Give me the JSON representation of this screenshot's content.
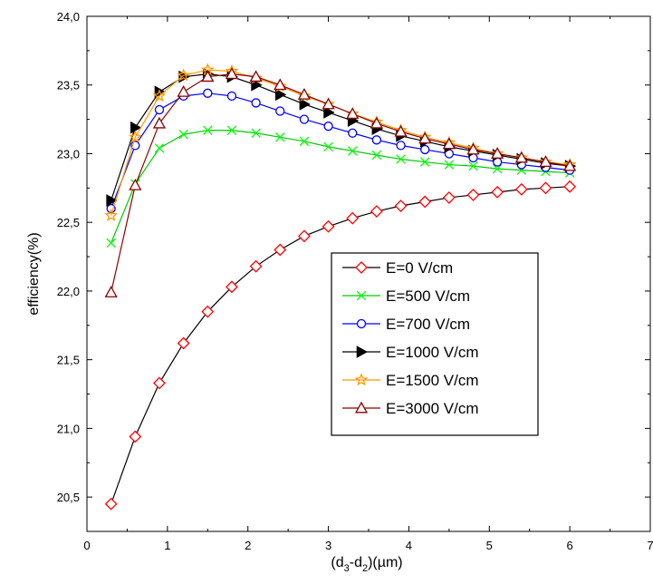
{
  "chart_data": {
    "type": "line",
    "title": "",
    "xlabel_parts": {
      "open": "(d",
      "sub1": "3",
      "mid": "-d",
      "sub2": "2",
      "close": ")(µm)"
    },
    "ylabel": "efficiency(%)",
    "xlim": [
      0,
      7
    ],
    "ylim": [
      20.25,
      24.0
    ],
    "x_ticks": [
      0,
      1,
      2,
      3,
      4,
      5,
      6,
      7
    ],
    "x_tick_labels": [
      "0",
      "1",
      "2",
      "3",
      "4",
      "5",
      "6",
      "7"
    ],
    "y_ticks": [
      20.5,
      21.0,
      21.5,
      22.0,
      22.5,
      23.0,
      23.5,
      24.0
    ],
    "y_tick_labels": [
      "20,5",
      "21,0",
      "21,5",
      "22,0",
      "22,5",
      "23,0",
      "23,5",
      "24,0"
    ],
    "grid": false,
    "legend_position": "center-right",
    "x": [
      0.3,
      0.6,
      0.9,
      1.2,
      1.5,
      1.8,
      2.1,
      2.4,
      2.7,
      3.0,
      3.3,
      3.6,
      3.9,
      4.2,
      4.5,
      4.8,
      5.1,
      5.4,
      5.7,
      6.0
    ],
    "series": [
      {
        "name": "E=0 V/cm",
        "color": "#ff0000",
        "line_color": "#000000",
        "marker": "diamond",
        "values": [
          20.45,
          20.94,
          21.33,
          21.62,
          21.85,
          22.03,
          22.18,
          22.3,
          22.4,
          22.47,
          22.53,
          22.58,
          22.62,
          22.65,
          22.68,
          22.7,
          22.72,
          22.74,
          22.75,
          22.76
        ]
      },
      {
        "name": "E=500 V/cm",
        "color": "#00ff00",
        "line_color": "#00cc00",
        "marker": "x",
        "values": [
          22.35,
          22.78,
          23.04,
          23.14,
          23.17,
          23.17,
          23.15,
          23.12,
          23.09,
          23.05,
          23.02,
          22.99,
          22.96,
          22.94,
          22.92,
          22.91,
          22.89,
          22.88,
          22.87,
          22.86
        ]
      },
      {
        "name": "E=700 V/cm",
        "color": "#0000ff",
        "line_color": "#0000ff",
        "marker": "circle",
        "values": [
          22.6,
          23.06,
          23.32,
          23.42,
          23.44,
          23.42,
          23.37,
          23.31,
          23.25,
          23.2,
          23.15,
          23.1,
          23.06,
          23.03,
          23.0,
          22.97,
          22.94,
          22.92,
          22.9,
          22.88
        ]
      },
      {
        "name": "E=1000 V/cm",
        "color": "#000000",
        "line_color": "#000000",
        "marker": "triangle-right",
        "values": [
          22.66,
          23.19,
          23.45,
          23.56,
          23.58,
          23.56,
          23.5,
          23.43,
          23.36,
          23.3,
          23.24,
          23.18,
          23.13,
          23.09,
          23.05,
          23.02,
          22.99,
          22.96,
          22.93,
          22.91
        ]
      },
      {
        "name": "E=1500 V/cm",
        "color": "#ff9900",
        "line_color": "#ff9900",
        "marker": "star",
        "values": [
          22.55,
          23.12,
          23.42,
          23.57,
          23.61,
          23.6,
          23.55,
          23.49,
          23.42,
          23.36,
          23.29,
          23.23,
          23.17,
          23.12,
          23.08,
          23.04,
          23.0,
          22.97,
          22.94,
          22.92
        ]
      },
      {
        "name": "E=3000 V/cm",
        "color": "#8b0000",
        "line_color": "#8b0000",
        "marker": "triangle-up",
        "values": [
          21.99,
          22.77,
          23.22,
          23.45,
          23.56,
          23.58,
          23.56,
          23.5,
          23.43,
          23.36,
          23.29,
          23.22,
          23.16,
          23.11,
          23.07,
          23.03,
          23.0,
          22.97,
          22.94,
          22.91
        ]
      }
    ]
  }
}
